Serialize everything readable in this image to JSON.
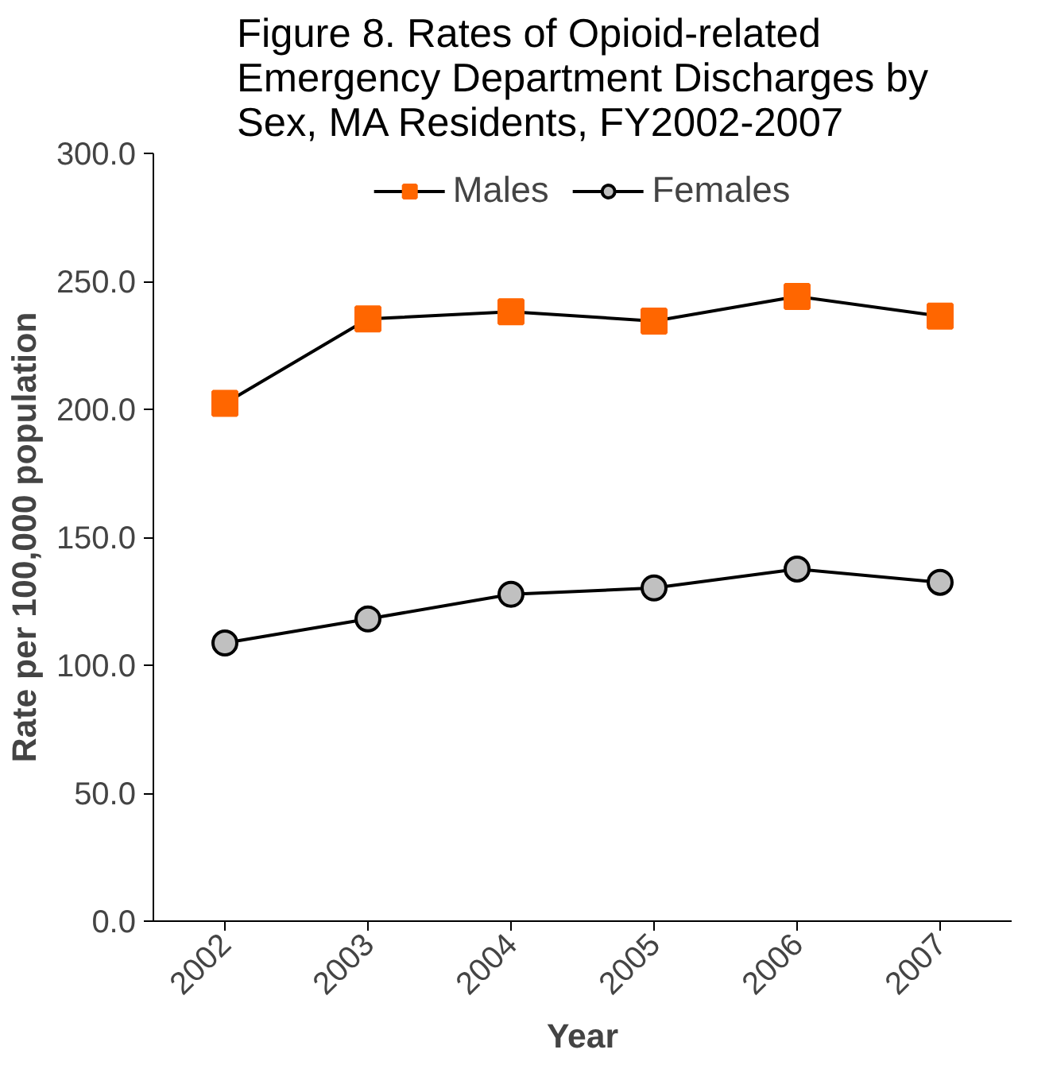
{
  "chart_data": {
    "type": "line",
    "title": "Figure 8. Rates of Opioid-related Emergency Department Discharges by Sex, MA Residents, FY2002-2007",
    "xlabel": "Year",
    "ylabel": "Rate per 100,000 population",
    "categories": [
      "2002",
      "2003",
      "2004",
      "2005",
      "2006",
      "2007"
    ],
    "series": [
      {
        "name": "Males",
        "color": "#ff6600",
        "marker": "square",
        "values": [
          202.3,
          235.3,
          238.1,
          234.5,
          244.1,
          236.4
        ]
      },
      {
        "name": "Females",
        "color": "#c0c0c0",
        "marker": "circle",
        "values": [
          108.7,
          118.1,
          127.7,
          130.2,
          137.6,
          132.4
        ]
      }
    ],
    "ylim": [
      0,
      300
    ],
    "yticks": [
      {
        "value": 0,
        "label": "0.0"
      },
      {
        "value": 50,
        "label": "50.0"
      },
      {
        "value": 100,
        "label": "100.0"
      },
      {
        "value": 150,
        "label": "150.0"
      },
      {
        "value": 200,
        "label": "200.0"
      },
      {
        "value": 250,
        "label": "250.0"
      },
      {
        "value": 300,
        "label": "300.0"
      }
    ],
    "grid": false,
    "legend": "top",
    "line_style": "solid"
  }
}
